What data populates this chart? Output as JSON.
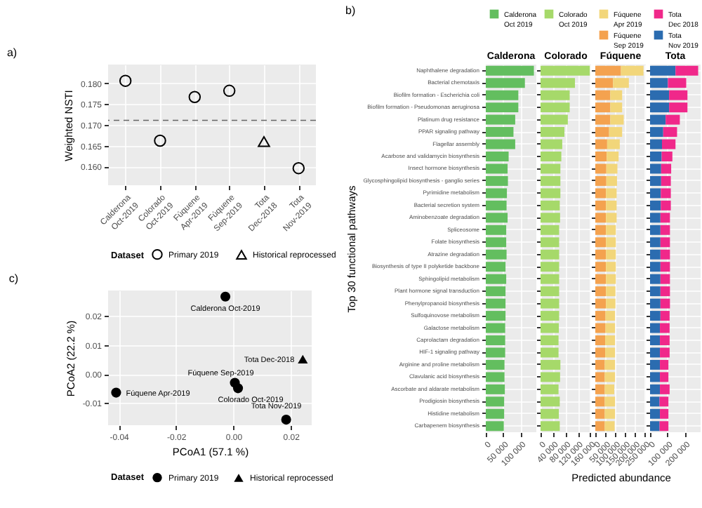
{
  "chart_data": [
    {
      "type": "scatter",
      "title": "a)",
      "ylabel": "Weighted NSTI",
      "legend_title": "Dataset",
      "legend": "bottom",
      "grid": true,
      "categories": [
        "Calderona Oct-2019",
        "Colorado Oct-2019",
        "Fúquene Apr-2019",
        "Fúquene Sep-2019",
        "Tota Dec-2018",
        "Tota Nov-2019"
      ],
      "ylim": [
        0.1555,
        0.1845
      ],
      "yticks": [
        {
          "value": 0.16,
          "label": "0.160"
        },
        0.165,
        {
          "value": 0.17,
          "label": "0.170"
        },
        0.175,
        {
          "value": 0.18,
          "label": "0.180"
        }
      ],
      "series": [
        {
          "name": "Primary 2019",
          "color": "#000000",
          "marker": "circle",
          "values": [
            0.1806,
            0.1662,
            0.1767,
            0.1782,
            null,
            0.1596
          ]
        },
        {
          "name": "Historical reprocessed",
          "color": "#000000",
          "marker": "triangle",
          "values": [
            null,
            null,
            null,
            null,
            0.166,
            null
          ]
        }
      ],
      "ref_lines": [
        {
          "axis": "y",
          "value": 0.1711,
          "line_style": "dashed",
          "color": "#666666"
        }
      ]
    },
    {
      "type": "bar",
      "orientation": "horizontal",
      "title": "Calderona",
      "ylabel": "Top 30 functional pathways",
      "legend": "top",
      "grid": true,
      "annotations": [
        "b)"
      ],
      "categories": [
        "Naphthalene degradation",
        "Bacterial chemotaxis",
        "Biofilm formation - Escherichia coli",
        "Biofilm formation - Pseudomonas aeruginosa",
        "Platinum drug resistance",
        "PPAR signaling pathway",
        "Flagellar assembly",
        "Acarbose and validamycin biosynthesis",
        "Insect hormone biosynthesis",
        "Glycosphingolipid biosynthesis - ganglio series",
        "Pyrimidine metabolism",
        "Bacterial secretion system",
        "Aminobenzoate degradation",
        "Spliceosome",
        "Folate biosynthesis",
        "Atrazine degradation",
        "Biosynthesis of type II polyketide backbone",
        "Sphingolipid metabolism",
        "Plant hormone signal transduction",
        "Phenylpropanoid biosynthesis",
        "Sulfoquinovose metabolism",
        "Galactose metabolism",
        "Caprolactam degradation",
        "HIF-1 signaling pathway",
        "Arginine and proline metabolism",
        "Clavulanic acid biosynthesis",
        "Ascorbate and aldarate metabolism",
        "Prodigiosin biosynthesis",
        "Histidine metabolism",
        "Carbapenem biosynthesis"
      ],
      "xlim": [
        0,
        146000
      ],
      "xticks": [
        0,
        {
          "value": 50000,
          "label": "50 000"
        },
        {
          "value": 100000,
          "label": "100 000"
        }
      ],
      "series": [
        {
          "name": "Calderona Oct 2019",
          "color": "#63be5f",
          "values": [
            139000,
            113000,
            94000,
            94000,
            85000,
            80000,
            85000,
            66000,
            63000,
            64000,
            61000,
            60000,
            63000,
            59000,
            59000,
            60000,
            57000,
            59000,
            57000,
            57000,
            57000,
            56000,
            56000,
            56000,
            54000,
            54000,
            55000,
            53000,
            53000,
            52000
          ]
        }
      ]
    },
    {
      "type": "bar",
      "orientation": "horizontal",
      "title": "Colorado",
      "legend": "top",
      "grid": true,
      "tick_labels": "x",
      "categories": [
        null,
        null,
        null,
        null,
        null,
        null,
        null,
        null,
        null,
        null,
        null,
        null,
        null,
        null,
        null,
        null,
        null,
        null,
        null,
        null,
        null,
        null,
        null,
        null,
        null,
        null,
        null,
        null,
        null,
        null
      ],
      "xlim": [
        0,
        163000
      ],
      "xticks": [
        0,
        {
          "value": 40000,
          "label": "40 000"
        },
        {
          "value": 80000,
          "label": "80 000"
        },
        {
          "value": 120000,
          "label": "120 000"
        },
        {
          "value": 160000,
          "label": "160 000"
        }
      ],
      "series": [
        {
          "name": "Colorado Oct 2019",
          "color": "#a6d96a",
          "values": [
            159000,
            111000,
            94000,
            94000,
            88000,
            77000,
            70000,
            67000,
            64000,
            64000,
            64000,
            62000,
            63000,
            60000,
            60000,
            60000,
            60000,
            60000,
            60000,
            60000,
            60000,
            59000,
            58000,
            58000,
            64000,
            63000,
            58000,
            62000,
            59000,
            62000
          ]
        }
      ]
    },
    {
      "type": "bar",
      "orientation": "horizontal",
      "stacked": true,
      "title": "Fúquene",
      "xlabel": "Predicted abundance",
      "legend": "top",
      "grid": true,
      "tick_labels": "x",
      "categories": [
        null,
        null,
        null,
        null,
        null,
        null,
        null,
        null,
        null,
        null,
        null,
        null,
        null,
        null,
        null,
        null,
        null,
        null,
        null,
        null,
        null,
        null,
        null,
        null,
        null,
        null,
        null,
        null,
        null,
        null
      ],
      "xlim": [
        0,
        256000
      ],
      "xticks": [
        0,
        {
          "value": 50000,
          "label": "50 000"
        },
        {
          "value": 100000,
          "label": "100 000"
        },
        {
          "value": 150000,
          "label": "150 000"
        },
        {
          "value": 200000,
          "label": "200 000"
        },
        {
          "value": 250000,
          "label": "250 000"
        }
      ],
      "series": [
        {
          "name": "Fúquene Sep 2019",
          "color": "#f4a24f",
          "values": [
            130000,
            90000,
            76000,
            76000,
            76000,
            70000,
            60000,
            58000,
            56000,
            56000,
            54000,
            54000,
            54000,
            54000,
            54000,
            54000,
            54000,
            54000,
            54000,
            54000,
            52000,
            52000,
            50000,
            50000,
            48000,
            48000,
            48000,
            48000,
            48000,
            48000
          ]
        },
        {
          "name": "Fúquene Apr 2019",
          "color": "#f2d67a",
          "values": [
            114000,
            80000,
            60000,
            60000,
            68000,
            66000,
            64000,
            60000,
            56000,
            54000,
            54000,
            54000,
            54000,
            50000,
            50000,
            50000,
            50000,
            50000,
            48000,
            48000,
            48000,
            48000,
            50000,
            50000,
            52000,
            52000,
            48000,
            52000,
            52000,
            50000
          ]
        }
      ]
    },
    {
      "type": "bar",
      "orientation": "horizontal",
      "stacked": true,
      "title": "Tota",
      "legend": "top",
      "grid": true,
      "tick_labels": "x",
      "categories": [
        null,
        null,
        null,
        null,
        null,
        null,
        null,
        null,
        null,
        null,
        null,
        null,
        null,
        null,
        null,
        null,
        null,
        null,
        null,
        null,
        null,
        null,
        null,
        null,
        null,
        null,
        null,
        null,
        null,
        null
      ],
      "xlim": [
        0,
        292000
      ],
      "xticks": [
        0,
        {
          "value": 100000,
          "label": "100 000"
        },
        {
          "value": 200000,
          "label": "200 000"
        }
      ],
      "series": [
        {
          "name": "Tota Nov 2019",
          "color": "#2b6cb0",
          "values": [
            147000,
            103000,
            110000,
            110000,
            90000,
            76000,
            69000,
            67000,
            64000,
            64000,
            62000,
            62000,
            60000,
            60000,
            60000,
            60000,
            60000,
            60000,
            60000,
            60000,
            60000,
            57000,
            57000,
            57000,
            57000,
            57000,
            57000,
            55000,
            57000,
            55000
          ]
        },
        {
          "name": "Tota Dec 2018",
          "color": "#f0288a",
          "values": [
            131000,
            106000,
            106000,
            106000,
            82000,
            80000,
            78000,
            62000,
            58000,
            56000,
            58000,
            58000,
            55000,
            55000,
            55000,
            55000,
            55000,
            55000,
            55000,
            55000,
            53000,
            56000,
            56000,
            56000,
            49000,
            49000,
            56000,
            51000,
            49000,
            51000
          ]
        }
      ]
    },
    {
      "type": "scatter",
      "title": "c)",
      "xlabel": "PCoA1 (57.1 %)",
      "ylabel": "PCoA2 (22.2 %)",
      "legend_title": "Dataset",
      "legend": "bottom",
      "grid": true,
      "xlim": [
        -0.0437,
        0.0273
      ],
      "xticks": [
        -0.04,
        -0.02,
        {
          "value": 0,
          "label": "0.00"
        },
        0.02
      ],
      "ylim": [
        -0.0176,
        0.0287
      ],
      "yticks": [
        -0.01,
        {
          "value": 0,
          "label": "0.00"
        },
        0.01,
        0.02
      ],
      "series": [
        {
          "name": "Primary 2019",
          "color": "#000000",
          "marker": "circle",
          "x": [
            -0.0028,
            0.0005,
            0.0016,
            -0.0409,
            0.0184
          ],
          "values": [
            0.0266,
            -0.003,
            -0.0049,
            -0.0064,
            -0.0157
          ]
        },
        {
          "name": "Historical reprocessed",
          "color": "#000000",
          "marker": "triangle",
          "x": [
            0.0242
          ],
          "values": [
            0.0051
          ]
        }
      ],
      "annotations": [
        {
          "text": "Calderona Oct-2019",
          "x": -0.0028,
          "y": 0.0266
        },
        {
          "text": "Tota Dec-2018",
          "x": 0.0242,
          "y": 0.0051
        },
        {
          "text": "Fúquene Sep-2019",
          "x": 0.0005,
          "y": -0.003
        },
        {
          "text": "Colorado Oct-2019",
          "x": 0.0016,
          "y": -0.0049
        },
        {
          "text": "Fúquene Apr-2019",
          "x": -0.0409,
          "y": -0.0064
        },
        {
          "text": "Tota Nov-2019",
          "x": 0.0184,
          "y": -0.0157
        }
      ]
    }
  ]
}
